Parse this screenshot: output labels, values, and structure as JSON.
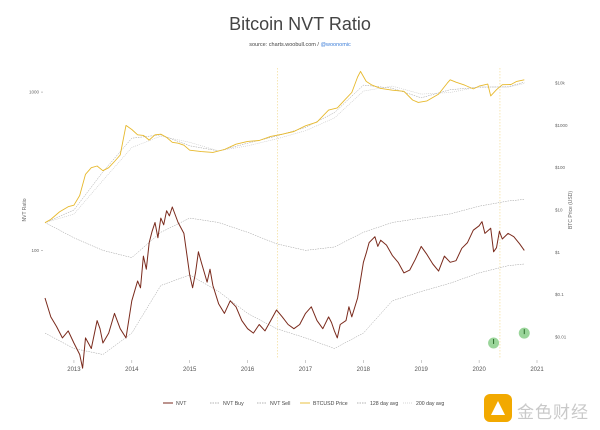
{
  "chart_data": {
    "type": "line",
    "title": "Bitcoin NVT Ratio",
    "source_prefix": "source: charts.woobull.com / ",
    "source_handle": "@woonomic",
    "ylabel_left": "NVT Ratio",
    "ylabel_right": "BTC Price (USD)",
    "x_ticks": [
      "2013",
      "2014",
      "2015",
      "2016",
      "2017",
      "2018",
      "2019",
      "2020",
      "2021"
    ],
    "x_range": [
      2012.5,
      2021.0
    ],
    "left_axis": {
      "scale": "log",
      "ticks": [
        "1000",
        "100"
      ],
      "tick_values": [
        1000,
        100
      ],
      "range_log10": [
        1.32,
        3.19
      ]
    },
    "right_axis": {
      "scale": "log",
      "ticks": [
        "$10k",
        "$1000",
        "$100",
        "$10",
        "$1",
        "$0.1",
        "$0.01"
      ],
      "tick_values": [
        10000,
        1000,
        100,
        10,
        1,
        0.1,
        0.01
      ],
      "range_log10": [
        -2.5,
        4.5
      ]
    },
    "highlight_markers": [
      {
        "date": 2020.25,
        "nvt": 26
      },
      {
        "date": 2020.78,
        "nvt": 30
      }
    ],
    "series": [
      {
        "name": "NVT",
        "color": "#7a2a1c",
        "axis": "left",
        "points": [
          [
            2012.5,
            50
          ],
          [
            2012.6,
            38
          ],
          [
            2012.7,
            33
          ],
          [
            2012.8,
            28
          ],
          [
            2012.9,
            31
          ],
          [
            2013.0,
            26
          ],
          [
            2013.1,
            22
          ],
          [
            2013.15,
            18
          ],
          [
            2013.2,
            28
          ],
          [
            2013.3,
            24
          ],
          [
            2013.4,
            36
          ],
          [
            2013.45,
            32
          ],
          [
            2013.5,
            26
          ],
          [
            2013.6,
            30
          ],
          [
            2013.7,
            40
          ],
          [
            2013.8,
            32
          ],
          [
            2013.9,
            28
          ],
          [
            2014.0,
            48
          ],
          [
            2014.1,
            64
          ],
          [
            2014.15,
            58
          ],
          [
            2014.2,
            92
          ],
          [
            2014.25,
            76
          ],
          [
            2014.3,
            112
          ],
          [
            2014.35,
            132
          ],
          [
            2014.4,
            150
          ],
          [
            2014.45,
            120
          ],
          [
            2014.5,
            160
          ],
          [
            2014.55,
            145
          ],
          [
            2014.6,
            178
          ],
          [
            2014.65,
            165
          ],
          [
            2014.7,
            188
          ],
          [
            2014.8,
            150
          ],
          [
            2014.9,
            128
          ],
          [
            2015.0,
            70
          ],
          [
            2015.05,
            58
          ],
          [
            2015.1,
            72
          ],
          [
            2015.15,
            98
          ],
          [
            2015.2,
            84
          ],
          [
            2015.3,
            63
          ],
          [
            2015.35,
            76
          ],
          [
            2015.4,
            60
          ],
          [
            2015.5,
            46
          ],
          [
            2015.6,
            40
          ],
          [
            2015.7,
            48
          ],
          [
            2015.8,
            44
          ],
          [
            2015.9,
            36
          ],
          [
            2016.0,
            32
          ],
          [
            2016.1,
            30
          ],
          [
            2016.2,
            34
          ],
          [
            2016.3,
            31
          ],
          [
            2016.4,
            36
          ],
          [
            2016.5,
            42
          ],
          [
            2016.6,
            38
          ],
          [
            2016.7,
            34
          ],
          [
            2016.8,
            32
          ],
          [
            2016.9,
            34
          ],
          [
            2017.0,
            40
          ],
          [
            2017.1,
            44
          ],
          [
            2017.2,
            36
          ],
          [
            2017.3,
            32
          ],
          [
            2017.4,
            38
          ],
          [
            2017.45,
            35
          ],
          [
            2017.5,
            31
          ],
          [
            2017.55,
            28
          ],
          [
            2017.6,
            34
          ],
          [
            2017.7,
            36
          ],
          [
            2017.75,
            44
          ],
          [
            2017.8,
            38
          ],
          [
            2017.9,
            50
          ],
          [
            2018.0,
            84
          ],
          [
            2018.05,
            96
          ],
          [
            2018.1,
            112
          ],
          [
            2018.2,
            122
          ],
          [
            2018.25,
            106
          ],
          [
            2018.3,
            116
          ],
          [
            2018.4,
            108
          ],
          [
            2018.5,
            93
          ],
          [
            2018.6,
            84
          ],
          [
            2018.7,
            72
          ],
          [
            2018.8,
            75
          ],
          [
            2018.9,
            88
          ],
          [
            2019.0,
            106
          ],
          [
            2019.1,
            94
          ],
          [
            2019.2,
            82
          ],
          [
            2019.3,
            74
          ],
          [
            2019.4,
            92
          ],
          [
            2019.5,
            84
          ],
          [
            2019.6,
            86
          ],
          [
            2019.7,
            103
          ],
          [
            2019.8,
            112
          ],
          [
            2019.9,
            134
          ],
          [
            2020.0,
            143
          ],
          [
            2020.05,
            152
          ],
          [
            2020.1,
            128
          ],
          [
            2020.2,
            138
          ],
          [
            2020.25,
            98
          ],
          [
            2020.3,
            104
          ],
          [
            2020.35,
            132
          ],
          [
            2020.4,
            118
          ],
          [
            2020.5,
            128
          ],
          [
            2020.6,
            122
          ],
          [
            2020.7,
            110
          ],
          [
            2020.78,
            100
          ]
        ]
      },
      {
        "name": "NVT Buy",
        "color": "#9a9a9a",
        "axis": "left",
        "points": [
          [
            2012.5,
            30
          ],
          [
            2013.0,
            24
          ],
          [
            2013.5,
            22
          ],
          [
            2014.0,
            30
          ],
          [
            2014.5,
            60
          ],
          [
            2015.0,
            70
          ],
          [
            2015.5,
            55
          ],
          [
            2016.0,
            40
          ],
          [
            2016.5,
            32
          ],
          [
            2017.0,
            28
          ],
          [
            2017.5,
            24
          ],
          [
            2018.0,
            30
          ],
          [
            2018.5,
            48
          ],
          [
            2019.0,
            55
          ],
          [
            2019.5,
            62
          ],
          [
            2020.0,
            72
          ],
          [
            2020.5,
            80
          ],
          [
            2020.78,
            82
          ]
        ]
      },
      {
        "name": "NVT Sell",
        "color": "#9a9a9a",
        "axis": "left",
        "points": [
          [
            2012.5,
            150
          ],
          [
            2013.0,
            120
          ],
          [
            2013.5,
            100
          ],
          [
            2014.0,
            90
          ],
          [
            2014.5,
            130
          ],
          [
            2015.0,
            160
          ],
          [
            2015.5,
            150
          ],
          [
            2016.0,
            130
          ],
          [
            2016.5,
            110
          ],
          [
            2017.0,
            100
          ],
          [
            2017.5,
            105
          ],
          [
            2018.0,
            130
          ],
          [
            2018.5,
            150
          ],
          [
            2019.0,
            160
          ],
          [
            2019.5,
            170
          ],
          [
            2020.0,
            190
          ],
          [
            2020.5,
            205
          ],
          [
            2020.78,
            210
          ]
        ]
      },
      {
        "name": "BTCUSD Price",
        "color": "#e7b92d",
        "axis": "right",
        "points": [
          [
            2012.5,
            5
          ],
          [
            2012.6,
            6
          ],
          [
            2012.75,
            9
          ],
          [
            2012.9,
            12
          ],
          [
            2013.0,
            13
          ],
          [
            2013.1,
            22
          ],
          [
            2013.2,
            70
          ],
          [
            2013.3,
            100
          ],
          [
            2013.4,
            110
          ],
          [
            2013.5,
            85
          ],
          [
            2013.6,
            100
          ],
          [
            2013.7,
            140
          ],
          [
            2013.8,
            200
          ],
          [
            2013.9,
            1000
          ],
          [
            2014.0,
            800
          ],
          [
            2014.1,
            600
          ],
          [
            2014.2,
            580
          ],
          [
            2014.3,
            450
          ],
          [
            2014.4,
            600
          ],
          [
            2014.5,
            620
          ],
          [
            2014.6,
            520
          ],
          [
            2014.7,
            400
          ],
          [
            2014.8,
            380
          ],
          [
            2014.9,
            340
          ],
          [
            2015.0,
            260
          ],
          [
            2015.2,
            240
          ],
          [
            2015.4,
            230
          ],
          [
            2015.6,
            270
          ],
          [
            2015.8,
            360
          ],
          [
            2016.0,
            420
          ],
          [
            2016.2,
            440
          ],
          [
            2016.4,
            550
          ],
          [
            2016.6,
            620
          ],
          [
            2016.8,
            720
          ],
          [
            2017.0,
            980
          ],
          [
            2017.2,
            1200
          ],
          [
            2017.4,
            2300
          ],
          [
            2017.55,
            2600
          ],
          [
            2017.7,
            4300
          ],
          [
            2017.8,
            6000
          ],
          [
            2017.9,
            14000
          ],
          [
            2017.95,
            19000
          ],
          [
            2018.05,
            11000
          ],
          [
            2018.15,
            9000
          ],
          [
            2018.3,
            7500
          ],
          [
            2018.5,
            6800
          ],
          [
            2018.7,
            6400
          ],
          [
            2018.85,
            4000
          ],
          [
            2018.95,
            3500
          ],
          [
            2019.1,
            3800
          ],
          [
            2019.3,
            5500
          ],
          [
            2019.45,
            10000
          ],
          [
            2019.5,
            12000
          ],
          [
            2019.6,
            10500
          ],
          [
            2019.75,
            9000
          ],
          [
            2019.9,
            7300
          ],
          [
            2020.0,
            8500
          ],
          [
            2020.15,
            9500
          ],
          [
            2020.2,
            5000
          ],
          [
            2020.3,
            7000
          ],
          [
            2020.4,
            9200
          ],
          [
            2020.55,
            9300
          ],
          [
            2020.65,
            11000
          ],
          [
            2020.78,
            12000
          ]
        ]
      },
      {
        "name": "128 day avg",
        "color": "#9a9a9a",
        "axis": "right",
        "points": [
          [
            2012.5,
            5
          ],
          [
            2013.0,
            10
          ],
          [
            2013.5,
            80
          ],
          [
            2014.0,
            500
          ],
          [
            2014.5,
            600
          ],
          [
            2015.0,
            330
          ],
          [
            2015.5,
            250
          ],
          [
            2016.0,
            380
          ],
          [
            2016.5,
            560
          ],
          [
            2017.0,
            900
          ],
          [
            2017.5,
            2000
          ],
          [
            2018.0,
            9000
          ],
          [
            2018.5,
            7600
          ],
          [
            2019.0,
            4500
          ],
          [
            2019.5,
            7000
          ],
          [
            2020.0,
            8000
          ],
          [
            2020.5,
            8200
          ],
          [
            2020.78,
            10500
          ]
        ]
      },
      {
        "name": "200 day avg",
        "color": "#c7c7c7",
        "axis": "right",
        "points": [
          [
            2012.5,
            5
          ],
          [
            2013.0,
            8
          ],
          [
            2013.5,
            50
          ],
          [
            2014.0,
            300
          ],
          [
            2014.5,
            560
          ],
          [
            2015.0,
            400
          ],
          [
            2015.5,
            250
          ],
          [
            2016.0,
            330
          ],
          [
            2016.5,
            480
          ],
          [
            2017.0,
            750
          ],
          [
            2017.5,
            1500
          ],
          [
            2018.0,
            6500
          ],
          [
            2018.5,
            8500
          ],
          [
            2019.0,
            5500
          ],
          [
            2019.5,
            6000
          ],
          [
            2020.0,
            8200
          ],
          [
            2020.5,
            8000
          ],
          [
            2020.78,
            9800
          ]
        ]
      }
    ],
    "legend_placement": "bottom",
    "grid": false
  },
  "watermark": {
    "brand": "金色财经"
  },
  "colors": {
    "marker": "#8fd08f",
    "vline": "#e7b92d"
  }
}
